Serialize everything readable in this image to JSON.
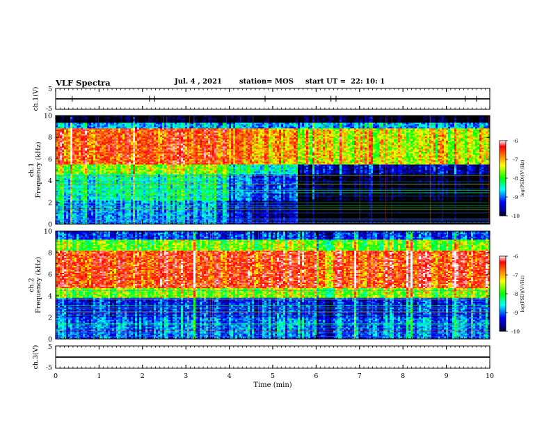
{
  "header": {
    "title": "VLF Spectra",
    "date": "Jul. 4 , 2021",
    "station": "station= MOS",
    "start_ut": "start UT =  22: 10: 1"
  },
  "colorbar": {
    "label": "log(PSD)(V²/Hz)",
    "ticks": [
      "-6",
      "-7",
      "-8",
      "-9",
      "-10"
    ],
    "colors": [
      "#ffffff",
      "#ff0000",
      "#ffff00",
      "#00ff00",
      "#00ffff",
      "#0000ff",
      "#00008b",
      "#000000"
    ]
  },
  "chart_data": [
    {
      "type": "line",
      "panel": "ch.1(V)",
      "ylabel": "ch.1(V)",
      "ylim": [
        -5,
        5
      ],
      "yticks": [
        "5",
        "-5"
      ],
      "series": [
        {
          "x": [
            0,
            10
          ],
          "values": [
            0,
            0
          ]
        }
      ]
    },
    {
      "type": "heatmap",
      "panel": "ch.1 spectrogram",
      "ylabel": "ch.1 Frequency (kHz)",
      "ylabel_lines": [
        "ch.1",
        "Frequency (kHz)"
      ],
      "ylim": [
        0,
        10
      ],
      "yticks": [
        0,
        2,
        4,
        6,
        8,
        10
      ],
      "xlim": [
        0,
        10
      ],
      "color_range": [
        -10,
        -6
      ],
      "bands": [
        {
          "f": [
            9.3,
            10
          ],
          "v": -10.3
        },
        {
          "f": [
            8.9,
            9.3
          ],
          "v": -8.8
        },
        {
          "f": [
            5.5,
            8.9
          ],
          "v": -6.9
        },
        {
          "f": [
            4.6,
            5.5
          ],
          "v": -8.0
        },
        {
          "f": [
            2.2,
            4.6
          ],
          "v": -8.7
        },
        {
          "f": [
            0,
            2.2
          ],
          "v": -9.2
        }
      ],
      "segments": [
        {
          "t": [
            0,
            4.0
          ],
          "offset": 0.3
        },
        {
          "t": [
            4.0,
            5.6
          ],
          "offset": -0.4
        },
        {
          "t": [
            5.6,
            10
          ],
          "offset": -1.6
        }
      ]
    },
    {
      "type": "heatmap",
      "panel": "ch.2 spectrogram",
      "ylabel": "ch.2 Frequency (kHz)",
      "ylabel_lines": [
        "ch.2",
        "Frequency (kHz)"
      ],
      "ylim": [
        0,
        10
      ],
      "yticks": [
        0,
        2,
        4,
        6,
        8,
        10
      ],
      "xlim": [
        0,
        10
      ],
      "color_range": [
        -10,
        -6
      ],
      "bands": [
        {
          "f": [
            9.2,
            10
          ],
          "v": -9.2
        },
        {
          "f": [
            8.2,
            9.2
          ],
          "v": -7.8
        },
        {
          "f": [
            4.8,
            8.2
          ],
          "v": -6.7
        },
        {
          "f": [
            3.8,
            4.8
          ],
          "v": -7.7
        },
        {
          "f": [
            2.0,
            3.8
          ],
          "v": -9.3
        },
        {
          "f": [
            0,
            2.0
          ],
          "v": -9.0
        }
      ],
      "segments": [
        {
          "t": [
            0,
            6.0
          ],
          "offset": 0.0
        },
        {
          "t": [
            6.0,
            6.4
          ],
          "offset": -0.6
        },
        {
          "t": [
            6.4,
            10
          ],
          "offset": 0.0
        }
      ]
    },
    {
      "type": "line",
      "panel": "ch.3(V)",
      "ylabel": "ch.3(V)",
      "ylim": [
        -5,
        5
      ],
      "yticks": [
        "5",
        "-5"
      ],
      "xlabel": "Time (min)",
      "xlim": [
        0,
        10
      ],
      "xticks": [
        0,
        1,
        2,
        3,
        4,
        5,
        6,
        7,
        8,
        9,
        10
      ],
      "series": [
        {
          "x": [
            0,
            10
          ],
          "values": [
            0,
            0
          ]
        }
      ]
    }
  ]
}
